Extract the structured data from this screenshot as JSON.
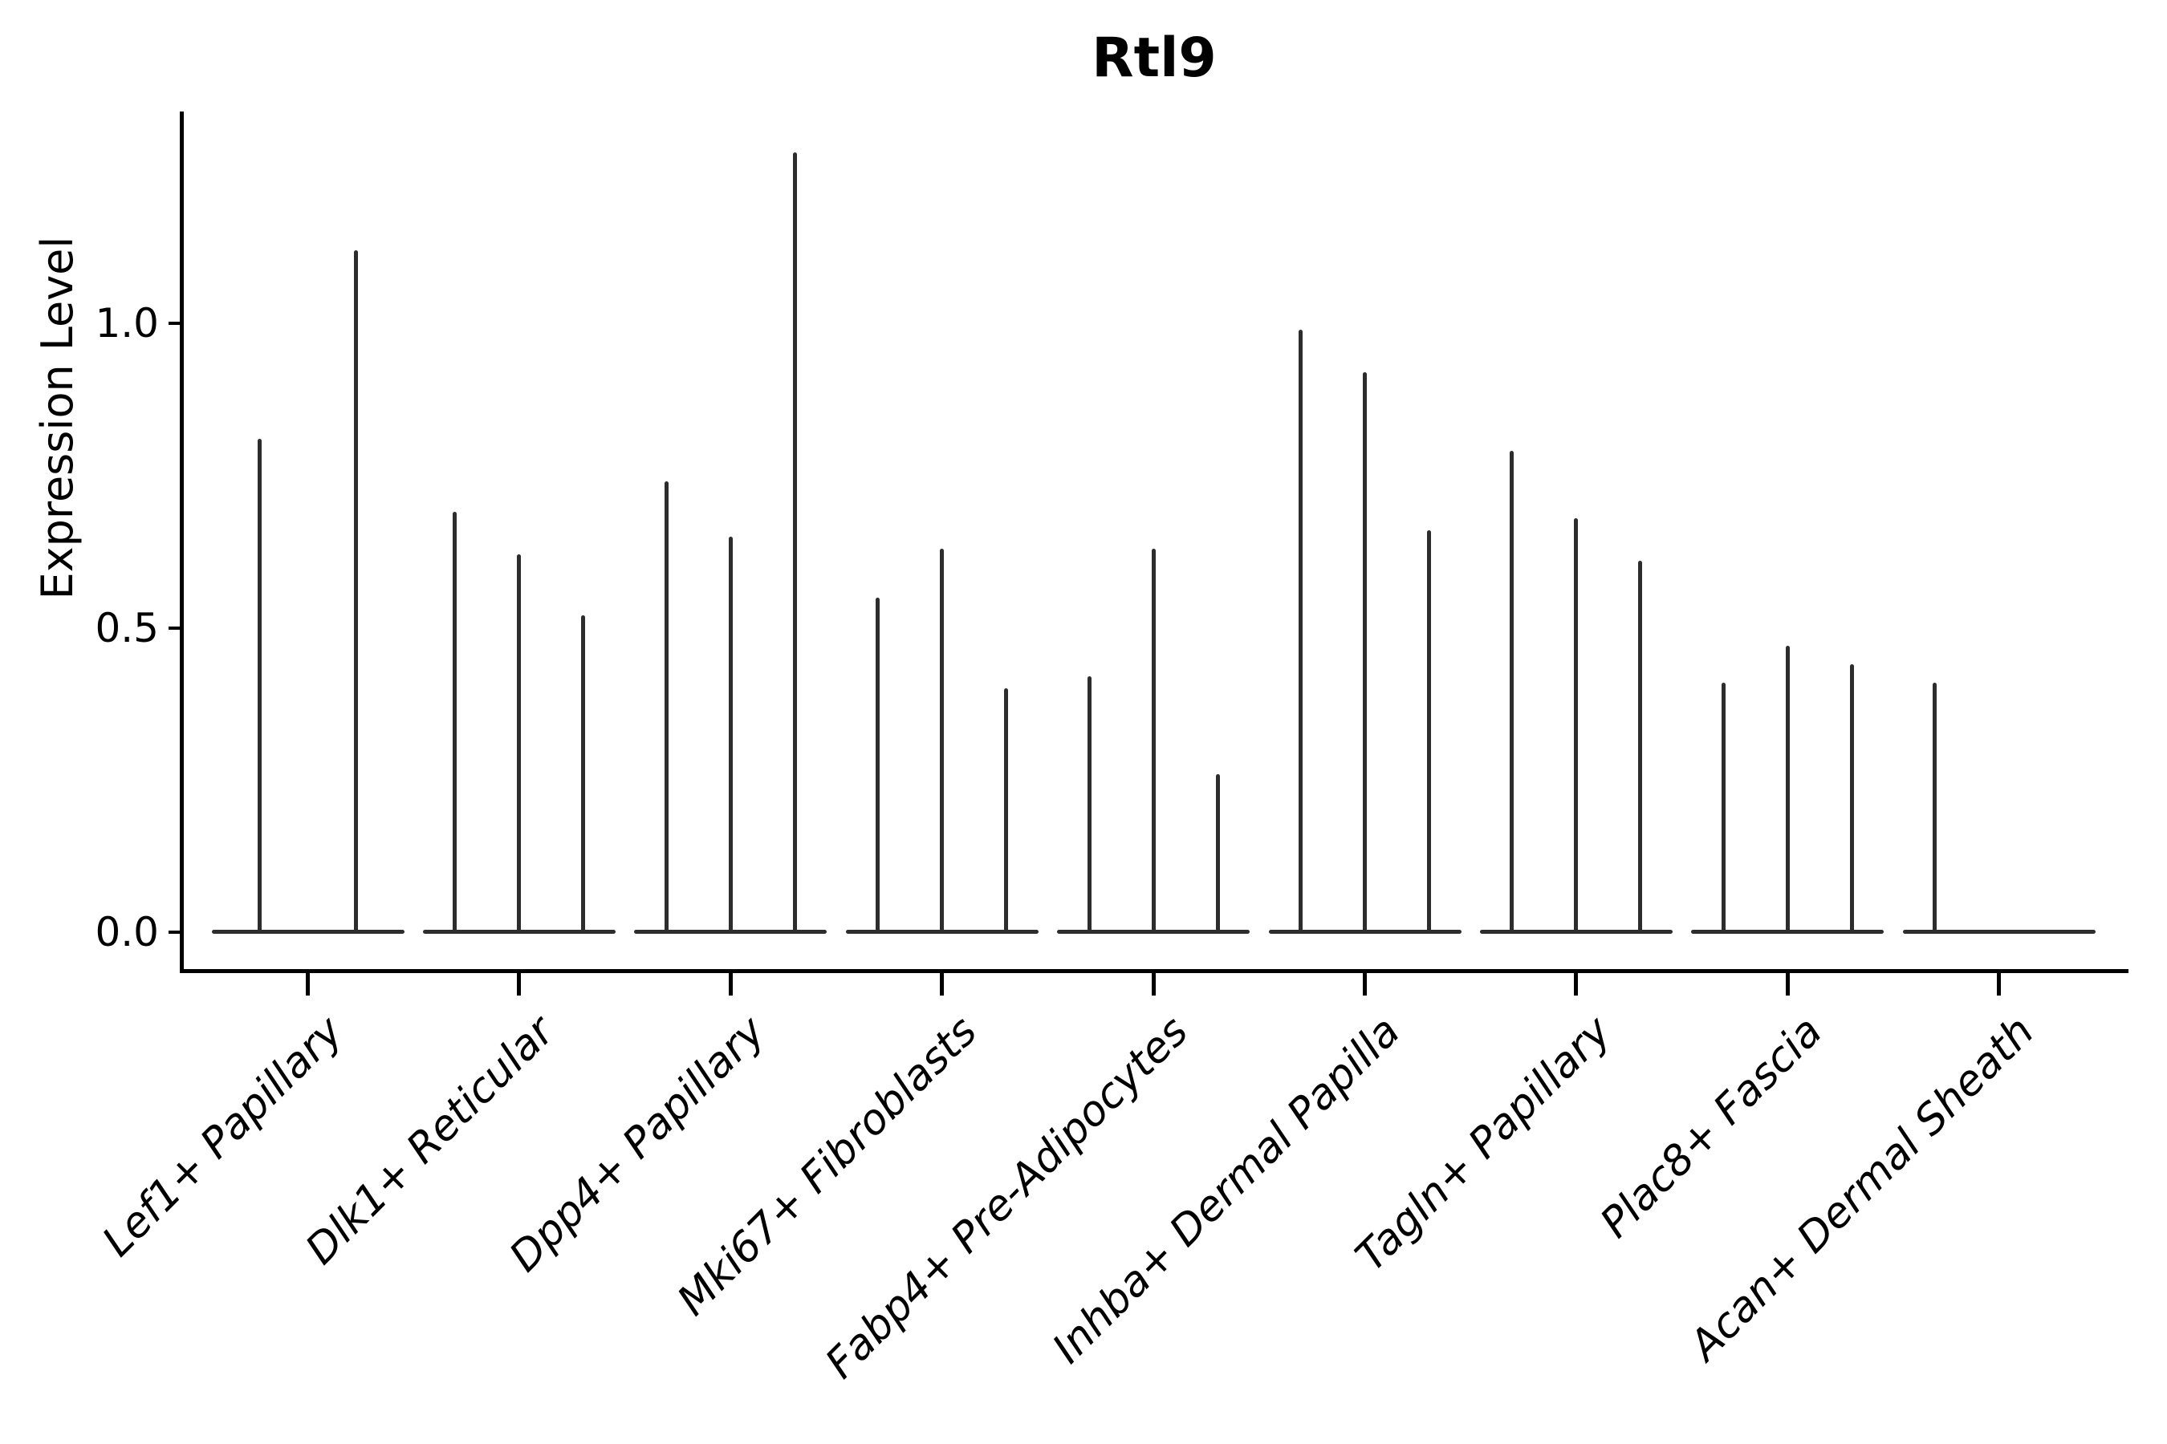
{
  "chart_data": {
    "type": "violin",
    "title": "Rtl9",
    "ylabel": "Expression Level",
    "xlabel": "",
    "ylim": [
      -0.06,
      1.35
    ],
    "grid": false,
    "legend": false,
    "background_color": "#ffffff",
    "violin_color": "#2d2d2d",
    "axis_color": "#000000",
    "yticks": [
      {
        "value": 0.0,
        "label": "0.0"
      },
      {
        "value": 0.5,
        "label": "0.5"
      },
      {
        "value": 1.0,
        "label": "1.0"
      }
    ],
    "categories": [
      "Lef1+ Papillary",
      "Dlk1+ Reticular",
      "Dpp4+ Papillary",
      "Mki67+ Fibroblasts",
      "Fabp4+ Pre-Adipocytes",
      "Inhba+ Dermal Papilla",
      "Tagln+ Papillary",
      "Plac8+ Fascia",
      "Acan+ Dermal Sheath"
    ],
    "series": [
      {
        "category": "Lef1+ Papillary",
        "violin_peak_values": [
          0.81,
          1.12
        ]
      },
      {
        "category": "Dlk1+ Reticular",
        "violin_peak_values": [
          0.69,
          0.62,
          0.52
        ]
      },
      {
        "category": "Dpp4+ Papillary",
        "violin_peak_values": [
          0.74,
          0.65,
          1.28
        ]
      },
      {
        "category": "Mki67+ Fibroblasts",
        "violin_peak_values": [
          0.55,
          0.63,
          0.4
        ]
      },
      {
        "category": "Fabp4+ Pre-Adipocytes",
        "violin_peak_values": [
          0.42,
          0.63,
          0.26
        ]
      },
      {
        "category": "Inhba+ Dermal Papilla",
        "violin_peak_values": [
          0.99,
          0.92,
          0.66
        ]
      },
      {
        "category": "Tagln+ Papillary",
        "violin_peak_values": [
          0.79,
          0.68,
          0.61
        ]
      },
      {
        "category": "Plac8+ Fascia",
        "violin_peak_values": [
          0.41,
          0.47,
          0.44
        ]
      },
      {
        "category": "Acan+ Dermal Sheath",
        "violin_peak_values": [
          0.41,
          0,
          0
        ]
      }
    ]
  }
}
